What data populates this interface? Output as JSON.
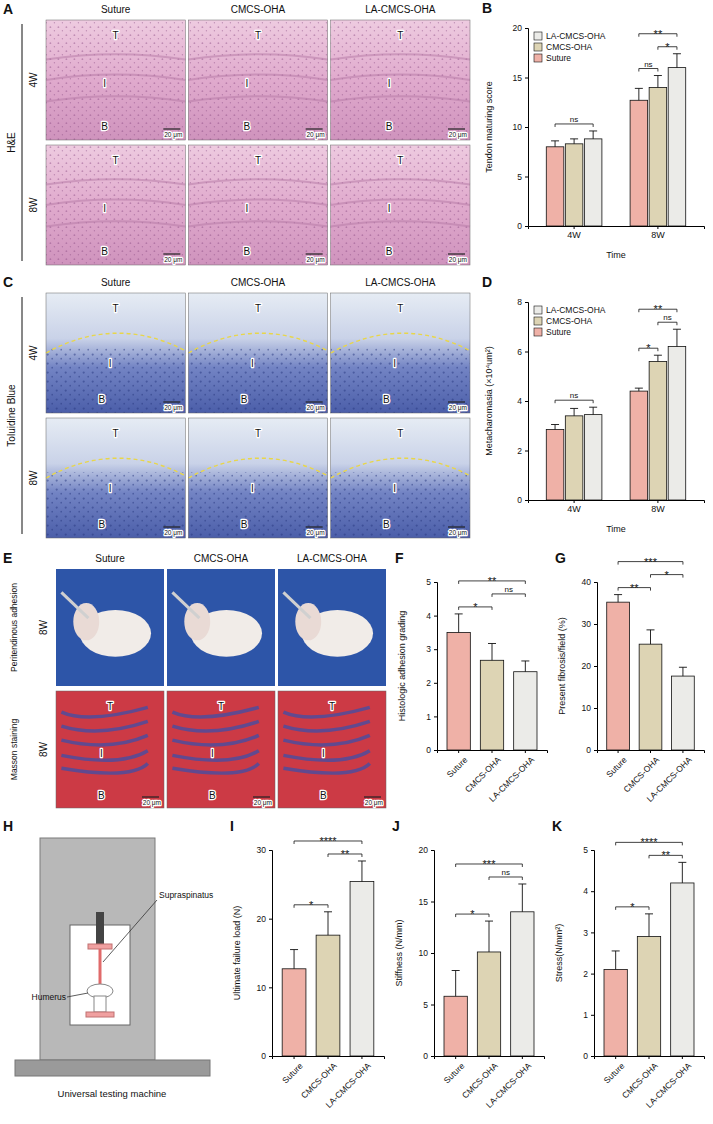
{
  "chart_data": [
    {
      "panel": "B",
      "type": "bar",
      "categories": [
        "4W",
        "8W"
      ],
      "xlabel": "Time",
      "ylabel": "Tendon maturing score",
      "ylim": [
        0,
        20
      ],
      "yticks": [
        0,
        5,
        10,
        15,
        20
      ],
      "legend": "top-left",
      "series": [
        {
          "name": "Suture",
          "color": "#efb1a7",
          "values": [
            8.0,
            12.7
          ],
          "errors": [
            0.6,
            1.2
          ]
        },
        {
          "name": "CMCS-OHA",
          "color": "#ddd4b4",
          "values": [
            8.3,
            14.0
          ],
          "errors": [
            0.5,
            1.2
          ]
        },
        {
          "name": "LA-CMCS-OHA",
          "color": "#ebebe8",
          "values": [
            8.8,
            16.0
          ],
          "errors": [
            0.8,
            1.4
          ]
        }
      ],
      "significance": [
        {
          "category": 0,
          "from": 0,
          "to": 2,
          "label": "ns"
        },
        {
          "category": 1,
          "from": 0,
          "to": 1,
          "label": "ns"
        },
        {
          "category": 1,
          "from": 1,
          "to": 2,
          "label": "*"
        },
        {
          "category": 1,
          "from": 0,
          "to": 2,
          "label": "**"
        }
      ]
    },
    {
      "panel": "D",
      "type": "bar",
      "categories": [
        "4W",
        "8W"
      ],
      "xlabel": "Time",
      "ylabel": "Metacharomasia (×10⁴um²)",
      "ylim": [
        0,
        8
      ],
      "yticks": [
        0,
        2,
        4,
        6,
        8
      ],
      "legend": "top-left",
      "series": [
        {
          "name": "Suture",
          "color": "#efb1a7",
          "values": [
            2.85,
            4.4
          ],
          "errors": [
            0.2,
            0.12
          ]
        },
        {
          "name": "CMCS-OHA",
          "color": "#ddd4b4",
          "values": [
            3.4,
            5.6
          ],
          "errors": [
            0.3,
            0.25
          ]
        },
        {
          "name": "LA-CMCS-OHA",
          "color": "#ebebe8",
          "values": [
            3.45,
            6.2
          ],
          "errors": [
            0.3,
            0.7
          ]
        }
      ],
      "significance": [
        {
          "category": 0,
          "from": 0,
          "to": 2,
          "label": "ns"
        },
        {
          "category": 1,
          "from": 0,
          "to": 1,
          "label": "*"
        },
        {
          "category": 1,
          "from": 1,
          "to": 2,
          "label": "ns"
        },
        {
          "category": 1,
          "from": 0,
          "to": 2,
          "label": "**"
        }
      ]
    },
    {
      "panel": "F",
      "type": "bar",
      "categories": [
        "Suture",
        "CMCS-OHA",
        "LA-CMCS-OHA"
      ],
      "ylabel": "Histologic adhesion grading",
      "ylim": [
        0,
        5
      ],
      "yticks": [
        0,
        1,
        2,
        3,
        4,
        5
      ],
      "values": [
        3.5,
        2.67,
        2.33
      ],
      "errors": [
        0.55,
        0.5,
        0.32
      ],
      "colors": [
        "#efb1a7",
        "#ddd4b4",
        "#ebebe8"
      ],
      "significance": [
        {
          "from": 0,
          "to": 1,
          "label": "*"
        },
        {
          "from": 1,
          "to": 2,
          "label": "ns"
        },
        {
          "from": 0,
          "to": 2,
          "label": "**"
        }
      ]
    },
    {
      "panel": "G",
      "type": "bar",
      "categories": [
        "Suture",
        "CMCS-OHA",
        "LA-CMCS-OHA"
      ],
      "ylabel": "Present fibrosis/field (%)",
      "ylim": [
        0,
        40
      ],
      "yticks": [
        0,
        10,
        20,
        30,
        40
      ],
      "values": [
        35.2,
        25.2,
        17.6
      ],
      "errors": [
        1.8,
        3.4,
        2.1
      ],
      "colors": [
        "#efb1a7",
        "#ddd4b4",
        "#ebebe8"
      ],
      "significance": [
        {
          "from": 0,
          "to": 1,
          "label": "**"
        },
        {
          "from": 1,
          "to": 2,
          "label": "*"
        },
        {
          "from": 0,
          "to": 2,
          "label": "***"
        }
      ]
    },
    {
      "panel": "I",
      "type": "bar",
      "categories": [
        "Suture",
        "CMCS-OHA",
        "LA-CMCS-OHA"
      ],
      "ylabel": "Ultimate failure load (N)",
      "ylim": [
        0,
        30
      ],
      "yticks": [
        0,
        10,
        20,
        30
      ],
      "values": [
        12.7,
        17.6,
        25.4
      ],
      "errors": [
        2.8,
        3.4,
        3.0
      ],
      "colors": [
        "#efb1a7",
        "#ddd4b4",
        "#ebebe8"
      ],
      "significance": [
        {
          "from": 0,
          "to": 1,
          "label": "*"
        },
        {
          "from": 1,
          "to": 2,
          "label": "**"
        },
        {
          "from": 0,
          "to": 2,
          "label": "****"
        }
      ]
    },
    {
      "panel": "J",
      "type": "bar",
      "categories": [
        "Suture",
        "CMCS-OHA",
        "LA-CMCS-OHA"
      ],
      "ylabel": "Stiffness (N/mm)",
      "ylim": [
        0,
        20
      ],
      "yticks": [
        0,
        5,
        10,
        15,
        20
      ],
      "values": [
        5.8,
        10.1,
        14.0
      ],
      "errors": [
        2.5,
        3.0,
        2.7
      ],
      "colors": [
        "#efb1a7",
        "#ddd4b4",
        "#ebebe8"
      ],
      "significance": [
        {
          "from": 0,
          "to": 1,
          "label": "*"
        },
        {
          "from": 1,
          "to": 2,
          "label": "ns"
        },
        {
          "from": 0,
          "to": 2,
          "label": "***"
        }
      ]
    },
    {
      "panel": "K",
      "type": "bar",
      "categories": [
        "Suture",
        "CMCS-OHA",
        "LA-CMCS-OHA"
      ],
      "ylabel": "Stress(N/mm²)",
      "ylim": [
        0,
        5
      ],
      "yticks": [
        0,
        1,
        2,
        3,
        4,
        5
      ],
      "values": [
        2.1,
        2.9,
        4.2
      ],
      "errors": [
        0.45,
        0.55,
        0.5
      ],
      "colors": [
        "#efb1a7",
        "#ddd4b4",
        "#ebebe8"
      ],
      "significance": [
        {
          "from": 0,
          "to": 1,
          "label": "*"
        },
        {
          "from": 1,
          "to": 2,
          "label": "**"
        },
        {
          "from": 0,
          "to": 2,
          "label": "****"
        }
      ]
    }
  ],
  "image_panels": [
    {
      "panel": "A",
      "group": "H&E",
      "columns": [
        "Suture",
        "CMCS-OHA",
        "LA-CMCS-OHA"
      ],
      "rows": [
        {
          "label": "4W",
          "style": "he"
        },
        {
          "label": "8W",
          "style": "he"
        }
      ],
      "regions": [
        "T",
        "I",
        "B"
      ],
      "scale_bar": "20 μm"
    },
    {
      "panel": "C",
      "group": "Toluidine Blue",
      "columns": [
        "Suture",
        "CMCS-OHA",
        "LA-CMCS-OHA"
      ],
      "rows": [
        {
          "label": "4W",
          "style": "toluidine"
        },
        {
          "label": "8W",
          "style": "toluidine"
        }
      ],
      "regions": [
        "T",
        "I",
        "B"
      ],
      "scale_bar": "20 μm"
    },
    {
      "panel": "E",
      "columns": [
        "Suture",
        "CMCS-OHA",
        "LA-CMCS-OHA"
      ],
      "rows": [
        {
          "group": "Peritendinous adhesion",
          "label": "8W",
          "style": "photo"
        },
        {
          "group": "Masson staining",
          "label": "8W",
          "style": "masson"
        }
      ],
      "regions": [
        "T",
        "I",
        "B"
      ],
      "scale_bar": "20 μm"
    }
  ],
  "schematic": {
    "panel": "H",
    "machine": "Universal testing machine",
    "tendon": "Supraspinatus",
    "bone": "Humerus"
  }
}
